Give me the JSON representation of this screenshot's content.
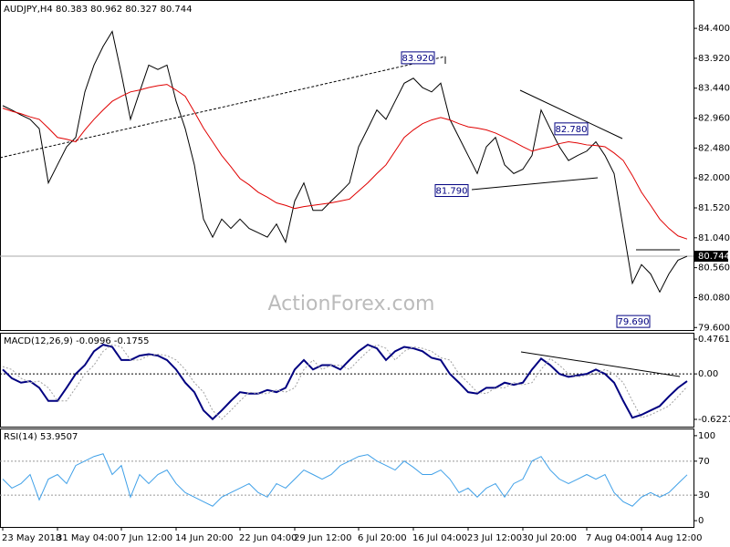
{
  "chart_data": [
    {
      "type": "line",
      "title": "AUDJPY,H4  80.383 80.962 80.327 80.744",
      "watermark": "ActionForex.com",
      "categories": [
        "23 May 2018",
        null,
        null,
        null,
        null,
        null,
        "31 May 04:00",
        null,
        null,
        null,
        null,
        null,
        null,
        "7 Jun 12:00",
        null,
        null,
        null,
        null,
        null,
        "14 Jun 20:00",
        null,
        null,
        null,
        null,
        null,
        null,
        "22 Jun 04:00",
        null,
        null,
        null,
        null,
        null,
        "29 Jun 12:00",
        null,
        null,
        null,
        null,
        null,
        null,
        "6 Jul 20:00",
        null,
        null,
        null,
        null,
        null,
        "16 Jul 04:00",
        null,
        null,
        null,
        null,
        null,
        "23 Jul 12:00",
        null,
        null,
        null,
        null,
        null,
        "30 Jul 20:00",
        null,
        null,
        null,
        null,
        null,
        null,
        "7 Aug 04:00",
        null,
        null,
        null,
        null,
        null,
        "14 Aug 12:00",
        null,
        null,
        null,
        null,
        null
      ],
      "series": [
        {
          "color": "#000000",
          "values": [
            83.16,
            83.09,
            83.01,
            82.94,
            82.79,
            81.92,
            82.21,
            82.5,
            82.65,
            83.38,
            83.81,
            84.11,
            84.35,
            83.67,
            82.94,
            83.38,
            83.81,
            83.74,
            83.81,
            83.23,
            82.79,
            82.21,
            81.34,
            81.05,
            81.34,
            81.19,
            81.34,
            81.19,
            81.12,
            81.05,
            81.26,
            80.97,
            81.63,
            81.92,
            81.48,
            81.48,
            81.63,
            81.77,
            81.92,
            82.5,
            82.79,
            83.09,
            82.94,
            83.23,
            83.52,
            83.6,
            83.45,
            83.38,
            83.52,
            82.94,
            82.65,
            82.36,
            82.07,
            82.5,
            82.65,
            82.21,
            82.07,
            82.14,
            82.36,
            83.09,
            82.79,
            82.5,
            82.28,
            82.36,
            82.43,
            82.58,
            82.36,
            82.07,
            81.19,
            80.31,
            80.61,
            80.46,
            80.17,
            80.46,
            80.68,
            80.744
          ]
        },
        {
          "color": "#e00000",
          "values": [
            83.12,
            83.07,
            83.03,
            82.98,
            82.94,
            82.8,
            82.65,
            82.62,
            82.58,
            82.77,
            82.94,
            83.09,
            83.23,
            83.31,
            83.38,
            83.41,
            83.45,
            83.48,
            83.5,
            83.41,
            83.31,
            83.06,
            82.8,
            82.58,
            82.36,
            82.18,
            81.99,
            81.89,
            81.77,
            81.69,
            81.6,
            81.56,
            81.51,
            81.54,
            81.56,
            81.58,
            81.6,
            81.63,
            81.66,
            81.79,
            81.92,
            82.07,
            82.21,
            82.43,
            82.65,
            82.77,
            82.87,
            82.93,
            82.97,
            82.93,
            82.87,
            82.82,
            82.8,
            82.77,
            82.72,
            82.65,
            82.58,
            82.5,
            82.43,
            82.47,
            82.5,
            82.55,
            82.58,
            82.56,
            82.53,
            82.52,
            82.5,
            82.4,
            82.28,
            82.04,
            81.77,
            81.56,
            81.34,
            81.19,
            81.07,
            81.02
          ]
        }
      ],
      "ylim": [
        79.56,
        84.84
      ],
      "yticks": [
        {
          "value": 84.4,
          "label": "84.400"
        },
        {
          "value": 83.92,
          "label": "83.920"
        },
        {
          "value": 83.44,
          "label": "83.440"
        },
        {
          "value": 82.96,
          "label": "82.960"
        },
        {
          "value": 82.48,
          "label": "82.480"
        },
        {
          "value": 82.0,
          "label": "82.000"
        },
        {
          "value": 81.52,
          "label": "81.520"
        },
        {
          "value": 81.04,
          "label": "81.040"
        },
        {
          "value": 80.56,
          "label": "80.560"
        },
        {
          "value": 80.08,
          "label": "80.080"
        },
        {
          "value": 79.6,
          "label": "79.600"
        }
      ],
      "grid": false,
      "last": {
        "value": 80.744,
        "label": "80.744"
      },
      "annotations": [
        {
          "value": 83.92,
          "label": "83.920"
        },
        {
          "value": 81.79,
          "label": "81.790"
        },
        {
          "value": 82.78,
          "label": "82.780"
        },
        {
          "value": 79.69,
          "label": "79.690"
        }
      ]
    },
    {
      "type": "line",
      "title": "MACD(12,26,9) -0.0996 -0.1755",
      "series": [
        {
          "color": "#000080",
          "values": [
            0.06,
            -0.06,
            -0.12,
            -0.1,
            -0.19,
            -0.37,
            -0.37,
            -0.19,
            0.0,
            0.12,
            0.31,
            0.4,
            0.37,
            0.19,
            0.19,
            0.25,
            0.27,
            0.25,
            0.19,
            0.06,
            -0.12,
            -0.25,
            -0.5,
            -0.62,
            -0.5,
            -0.37,
            -0.25,
            -0.27,
            -0.27,
            -0.22,
            -0.25,
            -0.19,
            0.06,
            0.19,
            0.06,
            0.12,
            0.12,
            0.06,
            0.19,
            0.31,
            0.4,
            0.35,
            0.19,
            0.31,
            0.37,
            0.35,
            0.31,
            0.22,
            0.19,
            0.0,
            -0.12,
            -0.25,
            -0.27,
            -0.19,
            -0.19,
            -0.12,
            -0.15,
            -0.12,
            0.06,
            0.21,
            0.12,
            0.0,
            -0.04,
            -0.02,
            0.0,
            0.06,
            0.0,
            -0.12,
            -0.37,
            -0.6,
            -0.56,
            -0.5,
            -0.44,
            -0.31,
            -0.19,
            -0.0996
          ]
        },
        {
          "color": "#a0a0a0",
          "values": [
            0.1,
            0.06,
            -0.06,
            -0.12,
            -0.1,
            -0.19,
            -0.37,
            -0.37,
            -0.19,
            0.0,
            0.12,
            0.31,
            0.4,
            0.37,
            0.19,
            0.19,
            0.25,
            0.27,
            0.25,
            0.19,
            0.06,
            -0.12,
            -0.25,
            -0.5,
            -0.62,
            -0.5,
            -0.37,
            -0.25,
            -0.27,
            -0.27,
            -0.22,
            -0.25,
            -0.19,
            0.06,
            0.19,
            0.06,
            0.12,
            0.12,
            0.06,
            0.19,
            0.31,
            0.4,
            0.35,
            0.19,
            0.31,
            0.37,
            0.35,
            0.31,
            0.22,
            0.19,
            0.0,
            -0.12,
            -0.25,
            -0.27,
            -0.19,
            -0.19,
            -0.12,
            -0.15,
            -0.12,
            0.06,
            0.21,
            0.12,
            0.0,
            -0.04,
            -0.02,
            0.0,
            0.06,
            0.0,
            -0.12,
            -0.37,
            -0.6,
            -0.56,
            -0.5,
            -0.44,
            -0.31,
            -0.1755
          ]
        }
      ],
      "ylim": [
        -0.7226,
        0.551
      ],
      "yticks": [
        0.4761,
        {
          "value": 0,
          "label": "0.00"
        },
        -0.6227
      ],
      "grid": true
    },
    {
      "type": "line",
      "title": "RSI(14) 53.9507",
      "series": [
        {
          "color": "#3fa0e8",
          "values": [
            48.9,
            38.3,
            43.6,
            54.3,
            24.5,
            48.9,
            54.3,
            43.6,
            64.9,
            70.2,
            75.5,
            78.7,
            54.3,
            64.9,
            27.7,
            54.3,
            43.6,
            54.3,
            59.6,
            43.6,
            33.0,
            27.7,
            22.3,
            17.0,
            27.7,
            33.0,
            38.3,
            43.6,
            33.0,
            27.7,
            43.6,
            38.3,
            48.9,
            59.6,
            54.3,
            48.9,
            54.3,
            64.9,
            70.2,
            75.5,
            77.7,
            70.2,
            64.9,
            59.6,
            70.2,
            62.8,
            54.3,
            54.3,
            59.6,
            48.9,
            33.0,
            38.3,
            27.7,
            38.3,
            43.6,
            27.7,
            43.6,
            48.9,
            70.2,
            75.5,
            59.6,
            48.9,
            43.6,
            48.9,
            54.3,
            48.9,
            54.3,
            33.0,
            22.3,
            17.0,
            27.7,
            33.0,
            27.7,
            33.0,
            43.6,
            53.9507
          ]
        }
      ],
      "ylim": [
        -7.4,
        107.4
      ],
      "yticks": [
        100,
        70,
        30,
        0
      ],
      "grid": true
    }
  ]
}
